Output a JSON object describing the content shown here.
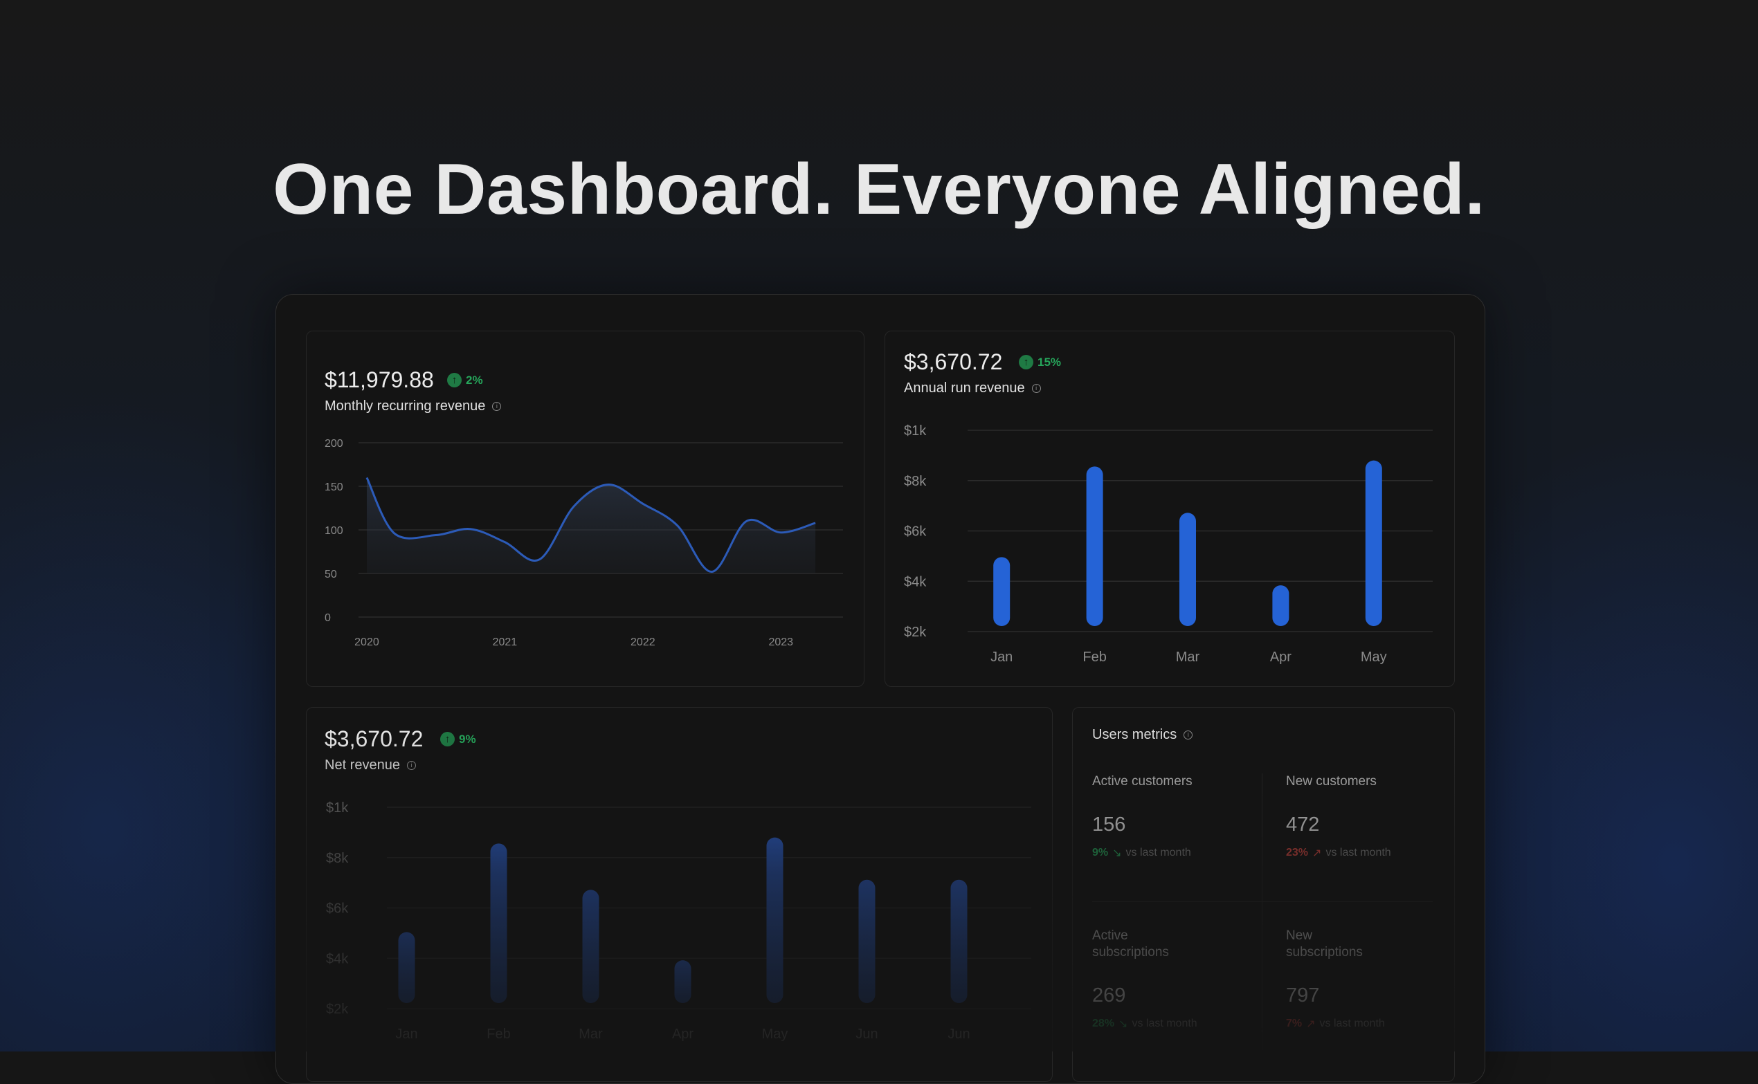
{
  "headline": "One Dashboard. Everyone Aligned.",
  "colors": {
    "accent": "#2563d6",
    "positive": "#26a65b",
    "negative": "#d0453f"
  },
  "mrr": {
    "amount": "$11,979.88",
    "change": "2%",
    "label": "Monthly recurring revenue",
    "chart_data": {
      "type": "area",
      "x": [
        2020.0,
        2020.2,
        2020.5,
        2020.75,
        2021.0,
        2021.25,
        2021.5,
        2021.75,
        2022.0,
        2022.25,
        2022.5,
        2022.75,
        2023.0,
        2023.25
      ],
      "y": [
        160,
        96,
        94,
        101,
        86,
        66,
        127,
        152,
        130,
        105,
        52,
        110,
        97,
        108
      ],
      "xticks": [
        "2020",
        "2021",
        "2022",
        "2023"
      ],
      "yticks": [
        "200",
        "150",
        "100",
        "50",
        "0"
      ],
      "ylim": [
        0,
        200
      ],
      "grid": true
    }
  },
  "arr": {
    "amount": "$3,670.72",
    "change": "15%",
    "label": "Annual run revenue",
    "chart_data": {
      "type": "bar",
      "categories": [
        "Jan",
        "Feb",
        "Mar",
        "Apr",
        "May"
      ],
      "yticks": [
        "$1k",
        "$8k",
        "$6k",
        "$4k",
        "$2k"
      ],
      "values_fraction_of_axis": [
        0.37,
        0.82,
        0.59,
        0.23,
        0.85
      ],
      "grid": true
    }
  },
  "net": {
    "amount": "$3,670.72",
    "change": "9%",
    "label": "Net revenue",
    "chart_data": {
      "type": "bar",
      "categories": [
        "Jan",
        "Feb",
        "Mar",
        "Apr",
        "May",
        "Jun",
        "Jun"
      ],
      "yticks": [
        "$1k",
        "$8k",
        "$6k",
        "$4k",
        "$2k"
      ],
      "values_fraction_of_axis": [
        0.38,
        0.82,
        0.59,
        0.24,
        0.85,
        0.64,
        0.64
      ],
      "grid": true
    }
  },
  "users": {
    "title": "Users metrics",
    "metrics": [
      {
        "label": "Active customers",
        "value": "156",
        "delta": "9%",
        "trend": "positive",
        "suffix": "vs last month"
      },
      {
        "label": "New customers",
        "value": "472",
        "delta": "23%",
        "trend": "negative",
        "suffix": "vs last month"
      },
      {
        "label": "Active subscriptions",
        "value": "269",
        "delta": "28%",
        "trend": "positive",
        "suffix": "vs last month"
      },
      {
        "label": "New subscriptions",
        "value": "797",
        "delta": "7%",
        "trend": "negative",
        "suffix": "vs last month"
      }
    ]
  }
}
